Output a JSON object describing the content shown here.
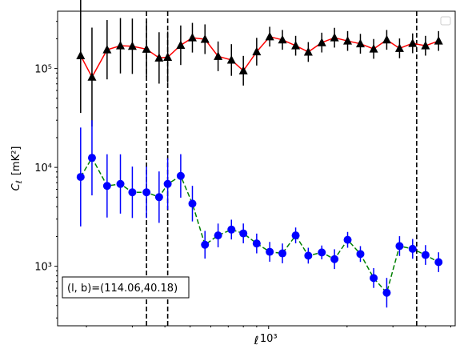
{
  "chart_data": {
    "type": "scatter",
    "title": "",
    "xlabel": "ℓ",
    "ylabel_main": "C",
    "ylabel_sub": "ℓ",
    "ylabel_unit": "[mK²]",
    "xscale": "log",
    "yscale": "log",
    "xlim": [
      155,
      5200
    ],
    "ylim": [
      250,
      380000
    ],
    "x_tick_labels": [
      {
        "value": 1000,
        "label": "10³"
      }
    ],
    "y_tick_labels": [
      {
        "value": 1000,
        "label": "10³"
      },
      {
        "value": 10000,
        "label": "10⁴"
      },
      {
        "value": 100000,
        "label": "10⁵"
      }
    ],
    "legend": {
      "placement": "top-right",
      "entries": []
    },
    "annotation": "(l, b)=(114.06,40.18)",
    "vlines": [
      340,
      410,
      3700
    ],
    "series": [
      {
        "color": "#000000",
        "line_color": "#ff0000",
        "line_style": "solid",
        "marker": "triangle",
        "x": [
          190,
          210,
          240,
          270,
          300,
          340,
          380,
          410,
          460,
          510,
          570,
          640,
          720,
          800,
          900,
          1010,
          1130,
          1270,
          1420,
          1600,
          1790,
          2010,
          2250,
          2530,
          2840,
          3180,
          3570,
          4000,
          4490
        ],
        "y": [
          135000,
          82000,
          155000,
          170000,
          168000,
          157000,
          128000,
          130000,
          172000,
          205000,
          198000,
          133000,
          122000,
          95000,
          148000,
          210000,
          195000,
          170000,
          147000,
          183000,
          205000,
          190000,
          178000,
          158000,
          195000,
          160000,
          180000,
          170000,
          190000
        ],
        "yerr": [
          0.58,
          0.5,
          0.3,
          0.28,
          0.28,
          0.28,
          0.26,
          0.26,
          0.2,
          0.15,
          0.15,
          0.15,
          0.16,
          0.15,
          0.14,
          0.1,
          0.1,
          0.1,
          0.1,
          0.1,
          0.1,
          0.1,
          0.1,
          0.1,
          0.1,
          0.1,
          0.1,
          0.1,
          0.1
        ]
      },
      {
        "color": "#0000ff",
        "line_color": "#008000",
        "line_style": "dashed",
        "marker": "circle",
        "x": [
          190,
          210,
          240,
          270,
          300,
          340,
          380,
          410,
          460,
          510,
          570,
          640,
          720,
          800,
          900,
          1010,
          1130,
          1270,
          1420,
          1600,
          1790,
          2010,
          2250,
          2530,
          2840,
          3180,
          3570,
          4000,
          4490
        ],
        "y": [
          8000,
          12500,
          6500,
          6800,
          5600,
          5600,
          5000,
          6800,
          8200,
          4300,
          1650,
          2050,
          2350,
          2150,
          1700,
          1400,
          1350,
          2050,
          1280,
          1380,
          1180,
          1850,
          1330,
          760,
          540,
          1600,
          1500,
          1300,
          1100
        ],
        "yerr": [
          0.5,
          0.38,
          0.32,
          0.3,
          0.26,
          0.26,
          0.26,
          0.26,
          0.22,
          0.18,
          0.14,
          0.12,
          0.1,
          0.1,
          0.1,
          0.1,
          0.1,
          0.08,
          0.08,
          0.07,
          0.1,
          0.08,
          0.08,
          0.1,
          0.15,
          0.1,
          0.1,
          0.1,
          0.1
        ]
      }
    ]
  }
}
